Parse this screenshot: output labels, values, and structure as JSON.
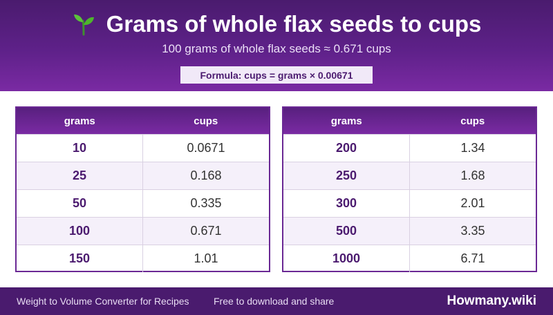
{
  "header": {
    "icon": "sprout-icon",
    "title": "Grams of whole flax seeds to cups",
    "subtitle": "100 grams of whole flax seeds ≈ 0.671 cups",
    "formula": "Formula: cups = grams × 0.00671"
  },
  "tables": [
    {
      "col_grams": "grams",
      "col_cups": "cups",
      "rows": [
        {
          "grams": "10",
          "cups": "0.0671"
        },
        {
          "grams": "25",
          "cups": "0.168"
        },
        {
          "grams": "50",
          "cups": "0.335"
        },
        {
          "grams": "100",
          "cups": "0.671"
        },
        {
          "grams": "150",
          "cups": "1.01"
        }
      ]
    },
    {
      "col_grams": "grams",
      "col_cups": "cups",
      "rows": [
        {
          "grams": "200",
          "cups": "1.34"
        },
        {
          "grams": "250",
          "cups": "1.68"
        },
        {
          "grams": "300",
          "cups": "2.01"
        },
        {
          "grams": "500",
          "cups": "3.35"
        },
        {
          "grams": "1000",
          "cups": "6.71"
        }
      ]
    }
  ],
  "footer": {
    "left": "Weight to Volume Converter for Recipes",
    "middle": "Free to download and share",
    "brand": "Howmany.wiki"
  },
  "colors": {
    "primary": "#5e2189",
    "accent_text": "#4b1a6f",
    "row_alt": "#f5f0fa"
  }
}
